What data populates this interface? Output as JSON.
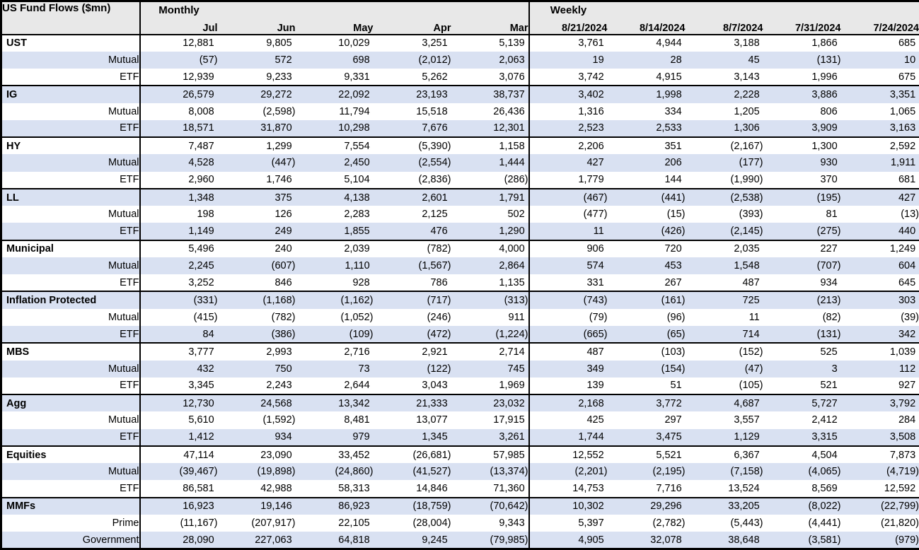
{
  "colors": {
    "stripe_blue": "#D9E1F2",
    "header_gray": "#E8E8E8",
    "border_black": "#000000",
    "text": "#000000"
  },
  "chart_data": {
    "type": "table",
    "title": "US Fund Flows ($mn)",
    "column_groups": [
      {
        "label": "Monthly",
        "columns": [
          "Jul",
          "Jun",
          "May",
          "Apr",
          "Mar"
        ]
      },
      {
        "label": "Weekly",
        "columns": [
          "8/21/2024",
          "8/14/2024",
          "8/7/2024",
          "7/31/2024",
          "7/24/2024"
        ]
      }
    ],
    "rows": [
      {
        "label": "UST",
        "level": "group",
        "monthly": [
          "12,881",
          "9,805",
          "10,029",
          "3,251",
          "5,139"
        ],
        "weekly": [
          "3,761",
          "4,944",
          "3,188",
          "1,866",
          "685"
        ]
      },
      {
        "label": "Mutual",
        "level": "sub",
        "monthly": [
          "(57)",
          "572",
          "698",
          "(2,012)",
          "2,063"
        ],
        "weekly": [
          "19",
          "28",
          "45",
          "(131)",
          "10"
        ]
      },
      {
        "label": "ETF",
        "level": "sub",
        "monthly": [
          "12,939",
          "9,233",
          "9,331",
          "5,262",
          "3,076"
        ],
        "weekly": [
          "3,742",
          "4,915",
          "3,143",
          "1,996",
          "675"
        ]
      },
      {
        "label": "IG",
        "level": "group",
        "monthly": [
          "26,579",
          "29,272",
          "22,092",
          "23,193",
          "38,737"
        ],
        "weekly": [
          "3,402",
          "1,998",
          "2,228",
          "3,886",
          "3,351"
        ]
      },
      {
        "label": "Mutual",
        "level": "sub",
        "monthly": [
          "8,008",
          "(2,598)",
          "11,794",
          "15,518",
          "26,436"
        ],
        "weekly": [
          "1,316",
          "334",
          "1,205",
          "806",
          "1,065"
        ]
      },
      {
        "label": "ETF",
        "level": "sub",
        "monthly": [
          "18,571",
          "31,870",
          "10,298",
          "7,676",
          "12,301"
        ],
        "weekly": [
          "2,523",
          "2,533",
          "1,306",
          "3,909",
          "3,163"
        ]
      },
      {
        "label": "HY",
        "level": "group",
        "monthly": [
          "7,487",
          "1,299",
          "7,554",
          "(5,390)",
          "1,158"
        ],
        "weekly": [
          "2,206",
          "351",
          "(2,167)",
          "1,300",
          "2,592"
        ]
      },
      {
        "label": "Mutual",
        "level": "sub",
        "monthly": [
          "4,528",
          "(447)",
          "2,450",
          "(2,554)",
          "1,444"
        ],
        "weekly": [
          "427",
          "206",
          "(177)",
          "930",
          "1,911"
        ]
      },
      {
        "label": "ETF",
        "level": "sub",
        "monthly": [
          "2,960",
          "1,746",
          "5,104",
          "(2,836)",
          "(286)"
        ],
        "weekly": [
          "1,779",
          "144",
          "(1,990)",
          "370",
          "681"
        ]
      },
      {
        "label": "LL",
        "level": "group",
        "monthly": [
          "1,348",
          "375",
          "4,138",
          "2,601",
          "1,791"
        ],
        "weekly": [
          "(467)",
          "(441)",
          "(2,538)",
          "(195)",
          "427"
        ]
      },
      {
        "label": "Mutual",
        "level": "sub",
        "monthly": [
          "198",
          "126",
          "2,283",
          "2,125",
          "502"
        ],
        "weekly": [
          "(477)",
          "(15)",
          "(393)",
          "81",
          "(13)"
        ]
      },
      {
        "label": "ETF",
        "level": "sub",
        "monthly": [
          "1,149",
          "249",
          "1,855",
          "476",
          "1,290"
        ],
        "weekly": [
          "11",
          "(426)",
          "(2,145)",
          "(275)",
          "440"
        ]
      },
      {
        "label": "Municipal",
        "level": "group",
        "monthly": [
          "5,496",
          "240",
          "2,039",
          "(782)",
          "4,000"
        ],
        "weekly": [
          "906",
          "720",
          "2,035",
          "227",
          "1,249"
        ]
      },
      {
        "label": "Mutual",
        "level": "sub",
        "monthly": [
          "2,245",
          "(607)",
          "1,110",
          "(1,567)",
          "2,864"
        ],
        "weekly": [
          "574",
          "453",
          "1,548",
          "(707)",
          "604"
        ]
      },
      {
        "label": "ETF",
        "level": "sub",
        "monthly": [
          "3,252",
          "846",
          "928",
          "786",
          "1,135"
        ],
        "weekly": [
          "331",
          "267",
          "487",
          "934",
          "645"
        ]
      },
      {
        "label": "Inflation Protected",
        "level": "group",
        "monthly": [
          "(331)",
          "(1,168)",
          "(1,162)",
          "(717)",
          "(313)"
        ],
        "weekly": [
          "(743)",
          "(161)",
          "725",
          "(213)",
          "303"
        ]
      },
      {
        "label": "Mutual",
        "level": "sub",
        "monthly": [
          "(415)",
          "(782)",
          "(1,052)",
          "(246)",
          "911"
        ],
        "weekly": [
          "(79)",
          "(96)",
          "11",
          "(82)",
          "(39)"
        ]
      },
      {
        "label": "ETF",
        "level": "sub",
        "monthly": [
          "84",
          "(386)",
          "(109)",
          "(472)",
          "(1,224)"
        ],
        "weekly": [
          "(665)",
          "(65)",
          "714",
          "(131)",
          "342"
        ]
      },
      {
        "label": "MBS",
        "level": "group",
        "monthly": [
          "3,777",
          "2,993",
          "2,716",
          "2,921",
          "2,714"
        ],
        "weekly": [
          "487",
          "(103)",
          "(152)",
          "525",
          "1,039"
        ]
      },
      {
        "label": "Mutual",
        "level": "sub",
        "monthly": [
          "432",
          "750",
          "73",
          "(122)",
          "745"
        ],
        "weekly": [
          "349",
          "(154)",
          "(47)",
          "3",
          "112"
        ]
      },
      {
        "label": "ETF",
        "level": "sub",
        "monthly": [
          "3,345",
          "2,243",
          "2,644",
          "3,043",
          "1,969"
        ],
        "weekly": [
          "139",
          "51",
          "(105)",
          "521",
          "927"
        ]
      },
      {
        "label": "Agg",
        "level": "group",
        "monthly": [
          "12,730",
          "24,568",
          "13,342",
          "21,333",
          "23,032"
        ],
        "weekly": [
          "2,168",
          "3,772",
          "4,687",
          "5,727",
          "3,792"
        ]
      },
      {
        "label": "Mutual",
        "level": "sub",
        "monthly": [
          "5,610",
          "(1,592)",
          "8,481",
          "13,077",
          "17,915"
        ],
        "weekly": [
          "425",
          "297",
          "3,557",
          "2,412",
          "284"
        ]
      },
      {
        "label": "ETF",
        "level": "sub",
        "monthly": [
          "1,412",
          "934",
          "979",
          "1,345",
          "3,261"
        ],
        "weekly": [
          "1,744",
          "3,475",
          "1,129",
          "3,315",
          "3,508"
        ]
      },
      {
        "label": "Equities",
        "level": "group",
        "monthly": [
          "47,114",
          "23,090",
          "33,452",
          "(26,681)",
          "57,985"
        ],
        "weekly": [
          "12,552",
          "5,521",
          "6,367",
          "4,504",
          "7,873"
        ]
      },
      {
        "label": "Mutual",
        "level": "sub",
        "monthly": [
          "(39,467)",
          "(19,898)",
          "(24,860)",
          "(41,527)",
          "(13,374)"
        ],
        "weekly": [
          "(2,201)",
          "(2,195)",
          "(7,158)",
          "(4,065)",
          "(4,719)"
        ]
      },
      {
        "label": "ETF",
        "level": "sub",
        "monthly": [
          "86,581",
          "42,988",
          "58,313",
          "14,846",
          "71,360"
        ],
        "weekly": [
          "14,753",
          "7,716",
          "13,524",
          "8,569",
          "12,592"
        ]
      },
      {
        "label": "MMFs",
        "level": "group",
        "monthly": [
          "16,923",
          "19,146",
          "86,923",
          "(18,759)",
          "(70,642)"
        ],
        "weekly": [
          "10,302",
          "29,296",
          "33,205",
          "(8,022)",
          "(22,799)"
        ]
      },
      {
        "label": "Prime",
        "level": "sub",
        "monthly": [
          "(11,167)",
          "(207,917)",
          "22,105",
          "(28,004)",
          "9,343"
        ],
        "weekly": [
          "5,397",
          "(2,782)",
          "(5,443)",
          "(4,441)",
          "(21,820)"
        ]
      },
      {
        "label": "Government",
        "level": "sub",
        "monthly": [
          "28,090",
          "227,063",
          "64,818",
          "9,245",
          "(79,985)"
        ],
        "weekly": [
          "4,905",
          "32,078",
          "38,648",
          "(3,581)",
          "(979)"
        ]
      }
    ]
  }
}
